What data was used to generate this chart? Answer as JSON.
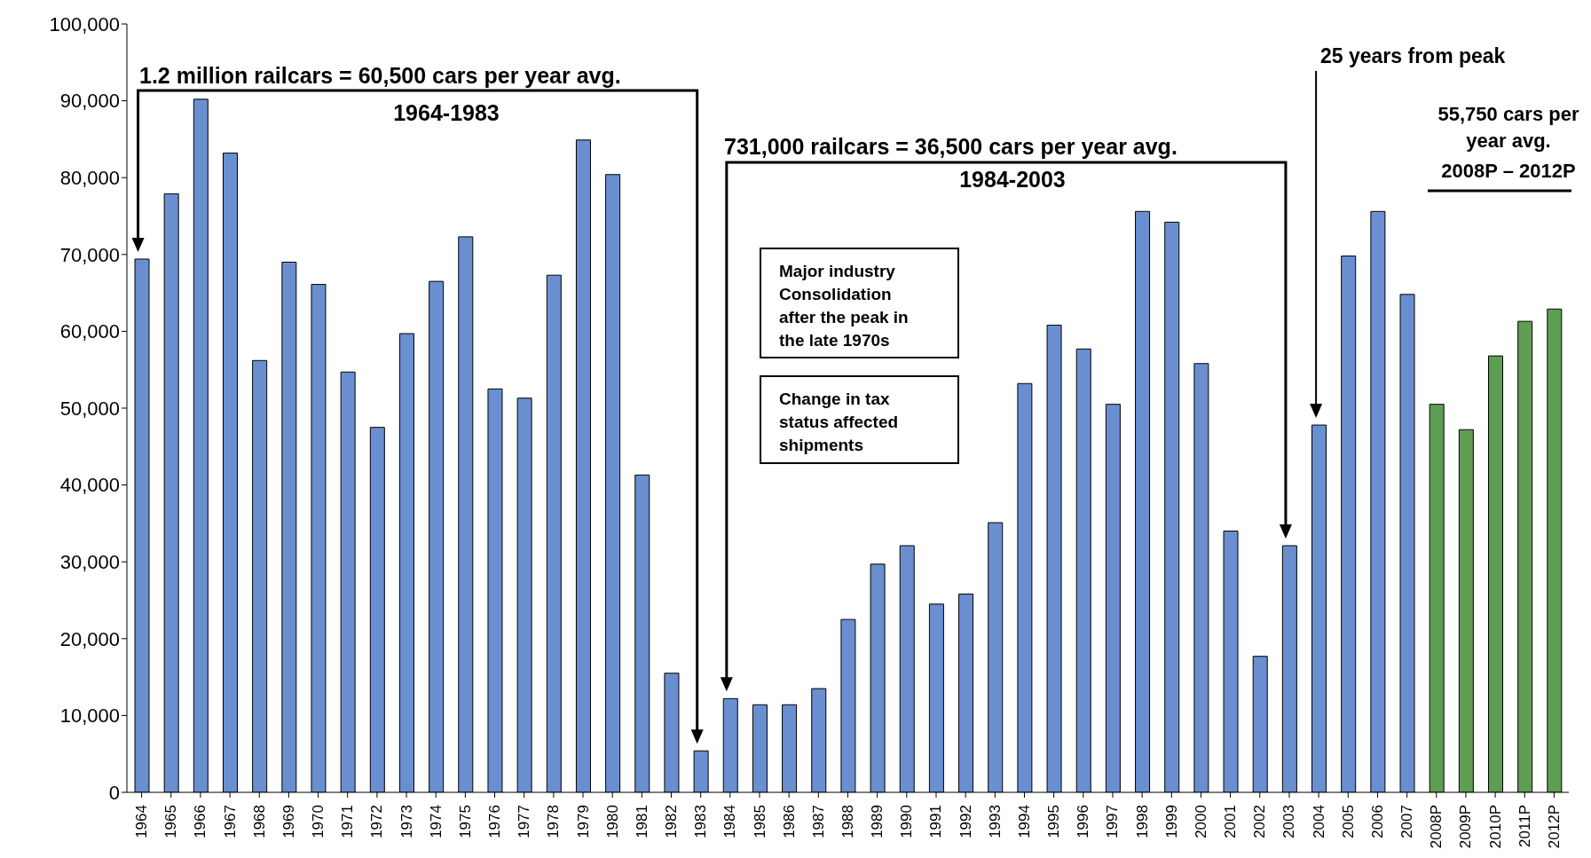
{
  "chart_data": {
    "type": "bar",
    "categories": [
      "1964",
      "1965",
      "1966",
      "1967",
      "1968",
      "1969",
      "1970",
      "1971",
      "1972",
      "1973",
      "1974",
      "1975",
      "1976",
      "1977",
      "1978",
      "1979",
      "1980",
      "1981",
      "1982",
      "1983",
      "1984",
      "1985",
      "1986",
      "1987",
      "1988",
      "1989",
      "1990",
      "1991",
      "1992",
      "1993",
      "1994",
      "1995",
      "1996",
      "1997",
      "1998",
      "1999",
      "2000",
      "2001",
      "2002",
      "2003",
      "2004",
      "2005",
      "2006",
      "2007",
      "2008P",
      "2009P",
      "2010P",
      "2011P",
      "2012P"
    ],
    "values": [
      69400,
      77900,
      90200,
      83200,
      56200,
      69000,
      66100,
      54700,
      47500,
      59700,
      66500,
      72300,
      52500,
      51300,
      67300,
      84900,
      80400,
      41300,
      15500,
      5400,
      12200,
      11400,
      11400,
      13500,
      22500,
      29700,
      32100,
      24500,
      25800,
      35100,
      53200,
      60800,
      57700,
      50500,
      75600,
      74200,
      55800,
      34000,
      17700,
      32100,
      47800,
      69800,
      75600,
      64800,
      50500,
      47200,
      56800,
      61300,
      62900
    ],
    "colors": [
      "#6a8fd0",
      "#6a8fd0",
      "#6a8fd0",
      "#6a8fd0",
      "#6a8fd0",
      "#6a8fd0",
      "#6a8fd0",
      "#6a8fd0",
      "#6a8fd0",
      "#6a8fd0",
      "#6a8fd0",
      "#6a8fd0",
      "#6a8fd0",
      "#6a8fd0",
      "#6a8fd0",
      "#6a8fd0",
      "#6a8fd0",
      "#6a8fd0",
      "#6a8fd0",
      "#6a8fd0",
      "#6a8fd0",
      "#6a8fd0",
      "#6a8fd0",
      "#6a8fd0",
      "#6a8fd0",
      "#6a8fd0",
      "#6a8fd0",
      "#6a8fd0",
      "#6a8fd0",
      "#6a8fd0",
      "#6a8fd0",
      "#6a8fd0",
      "#6a8fd0",
      "#6a8fd0",
      "#6a8fd0",
      "#6a8fd0",
      "#6a8fd0",
      "#6a8fd0",
      "#6a8fd0",
      "#6a8fd0",
      "#6a8fd0",
      "#6a8fd0",
      "#6a8fd0",
      "#6a8fd0",
      "#5e9e52",
      "#5e9e52",
      "#5e9e52",
      "#5e9e52",
      "#5e9e52"
    ],
    "ylim": [
      0,
      100000
    ],
    "yticks": [
      0,
      {
        "value": 10000,
        "label": "10,000"
      },
      {
        "value": 20000,
        "label": "20,000"
      },
      {
        "value": 30000,
        "label": "30,000"
      },
      {
        "value": 40000,
        "label": "40,000"
      },
      {
        "value": 50000,
        "label": "50,000"
      },
      {
        "value": 60000,
        "label": "60,000"
      },
      {
        "value": 70000,
        "label": "70,000"
      },
      {
        "value": 80000,
        "label": "80,000"
      },
      {
        "value": 90000,
        "label": "90,000"
      },
      {
        "value": 100000,
        "label": "100,000"
      }
    ],
    "grid": false,
    "annotations": [
      "1.2 million railcars = 60,500 cars per year avg.",
      "1964-1983",
      "731,000 railcars = 36,500 cars per year avg.",
      "1984-2003",
      "25 years from peak",
      "55,750 cars per year avg.",
      "2008P – 2012P",
      "Major industry Consolidation after the peak in the late 1970s",
      "Change in tax status affected shipments"
    ]
  }
}
